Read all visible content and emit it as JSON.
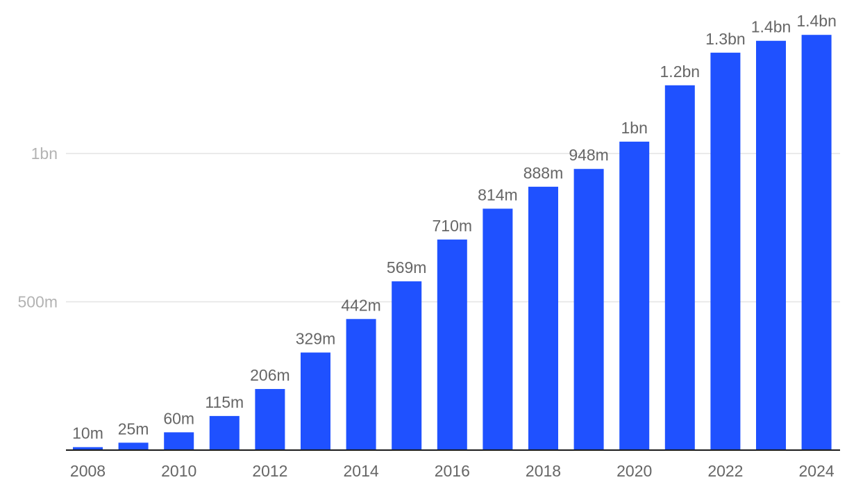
{
  "colors": {
    "bar": "#1f51ff",
    "grid": "#e3e3e3",
    "axis": "#1a1a1a",
    "tick_label": "#b3b3b3",
    "data_label": "#666666"
  },
  "chart_data": {
    "type": "bar",
    "title": "",
    "xlabel": "",
    "ylabel": "",
    "grid": true,
    "ylim": [
      0,
      1400000000
    ],
    "categories": [
      "2008",
      "2009",
      "2010",
      "2011",
      "2012",
      "2013",
      "2014",
      "2015",
      "2016",
      "2017",
      "2018",
      "2019",
      "2020",
      "2021",
      "2022",
      "2023",
      "2024"
    ],
    "values": [
      10000000,
      25000000,
      60000000,
      115000000,
      206000000,
      329000000,
      442000000,
      569000000,
      710000000,
      814000000,
      888000000,
      948000000,
      1040000000,
      1230000000,
      1340000000,
      1380000000,
      1400000000
    ],
    "data_labels": [
      "10m",
      "25m",
      "60m",
      "115m",
      "206m",
      "329m",
      "442m",
      "569m",
      "710m",
      "814m",
      "888m",
      "948m",
      "1bn",
      "1.2bn",
      "1.3bn",
      "1.4bn",
      "1.4bn"
    ],
    "y_ticks": [
      {
        "value": 500000000,
        "label": "500m"
      },
      {
        "value": 1000000000,
        "label": "1bn"
      }
    ],
    "x_tick_labels": [
      "2008",
      "2010",
      "2012",
      "2014",
      "2016",
      "2018",
      "2020",
      "2022",
      "2024"
    ]
  }
}
